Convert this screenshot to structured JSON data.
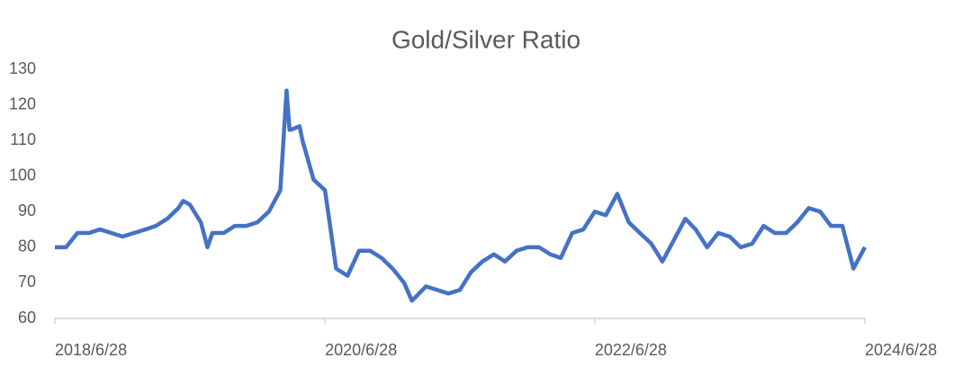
{
  "chart_data": {
    "type": "line",
    "title": "Gold/Silver Ratio",
    "x": [
      "2018-06-28",
      "2018-07-28",
      "2018-08-28",
      "2018-09-28",
      "2018-10-28",
      "2018-11-28",
      "2018-12-28",
      "2019-01-28",
      "2019-02-28",
      "2019-03-28",
      "2019-04-28",
      "2019-05-28",
      "2019-06-10",
      "2019-06-28",
      "2019-07-28",
      "2019-08-15",
      "2019-08-28",
      "2019-09-28",
      "2019-10-28",
      "2019-11-28",
      "2019-12-28",
      "2020-01-28",
      "2020-02-28",
      "2020-03-16",
      "2020-03-24",
      "2020-03-28",
      "2020-04-20",
      "2020-04-28",
      "2020-05-28",
      "2020-06-28",
      "2020-07-20",
      "2020-07-28",
      "2020-08-28",
      "2020-09-28",
      "2020-10-28",
      "2020-11-28",
      "2020-12-28",
      "2021-01-28",
      "2021-02-18",
      "2021-02-28",
      "2021-03-28",
      "2021-04-28",
      "2021-05-28",
      "2021-06-28",
      "2021-07-28",
      "2021-08-28",
      "2021-09-28",
      "2021-10-28",
      "2021-11-28",
      "2021-12-28",
      "2022-01-28",
      "2022-02-28",
      "2022-03-28",
      "2022-04-28",
      "2022-05-28",
      "2022-06-28",
      "2022-07-28",
      "2022-08-28",
      "2022-09-28",
      "2022-10-28",
      "2022-11-28",
      "2022-12-28",
      "2023-01-28",
      "2023-02-28",
      "2023-03-28",
      "2023-04-28",
      "2023-05-28",
      "2023-06-28",
      "2023-07-28",
      "2023-08-28",
      "2023-09-28",
      "2023-10-28",
      "2023-11-28",
      "2023-12-28",
      "2024-01-28",
      "2024-02-28",
      "2024-03-28",
      "2024-04-28",
      "2024-05-28",
      "2024-06-28"
    ],
    "series": [
      {
        "name": "Gold/Silver Ratio",
        "color": "#4472c4",
        "values": [
          80,
          80,
          84,
          84,
          85,
          84,
          83,
          84,
          85,
          86,
          88,
          91,
          93,
          92,
          87,
          80,
          84,
          84,
          86,
          86,
          87,
          90,
          96,
          124,
          113,
          113,
          114,
          110,
          99,
          96,
          80,
          74,
          72,
          79,
          79,
          77,
          74,
          70,
          65,
          66,
          69,
          68,
          67,
          68,
          73,
          76,
          78,
          76,
          79,
          80,
          80,
          78,
          77,
          84,
          85,
          90,
          89,
          95,
          87,
          84,
          81,
          76,
          82,
          88,
          85,
          80,
          84,
          83,
          80,
          81,
          86,
          84,
          84,
          87,
          91,
          90,
          86,
          86,
          74,
          80
        ]
      }
    ],
    "xlim": [
      "2018-06-28",
      "2024-06-28"
    ],
    "xticks": [
      {
        "value": "2018-06-28",
        "label": "2018/6/28"
      },
      {
        "value": "2020-06-28",
        "label": "2020/6/28"
      },
      {
        "value": "2022-06-28",
        "label": "2022/6/28"
      },
      {
        "value": "2024-06-28",
        "label": "2024/6/28"
      }
    ],
    "ylim": [
      60,
      130
    ],
    "yticks": [
      60,
      70,
      80,
      90,
      100,
      110,
      120,
      130
    ],
    "grid": false
  }
}
